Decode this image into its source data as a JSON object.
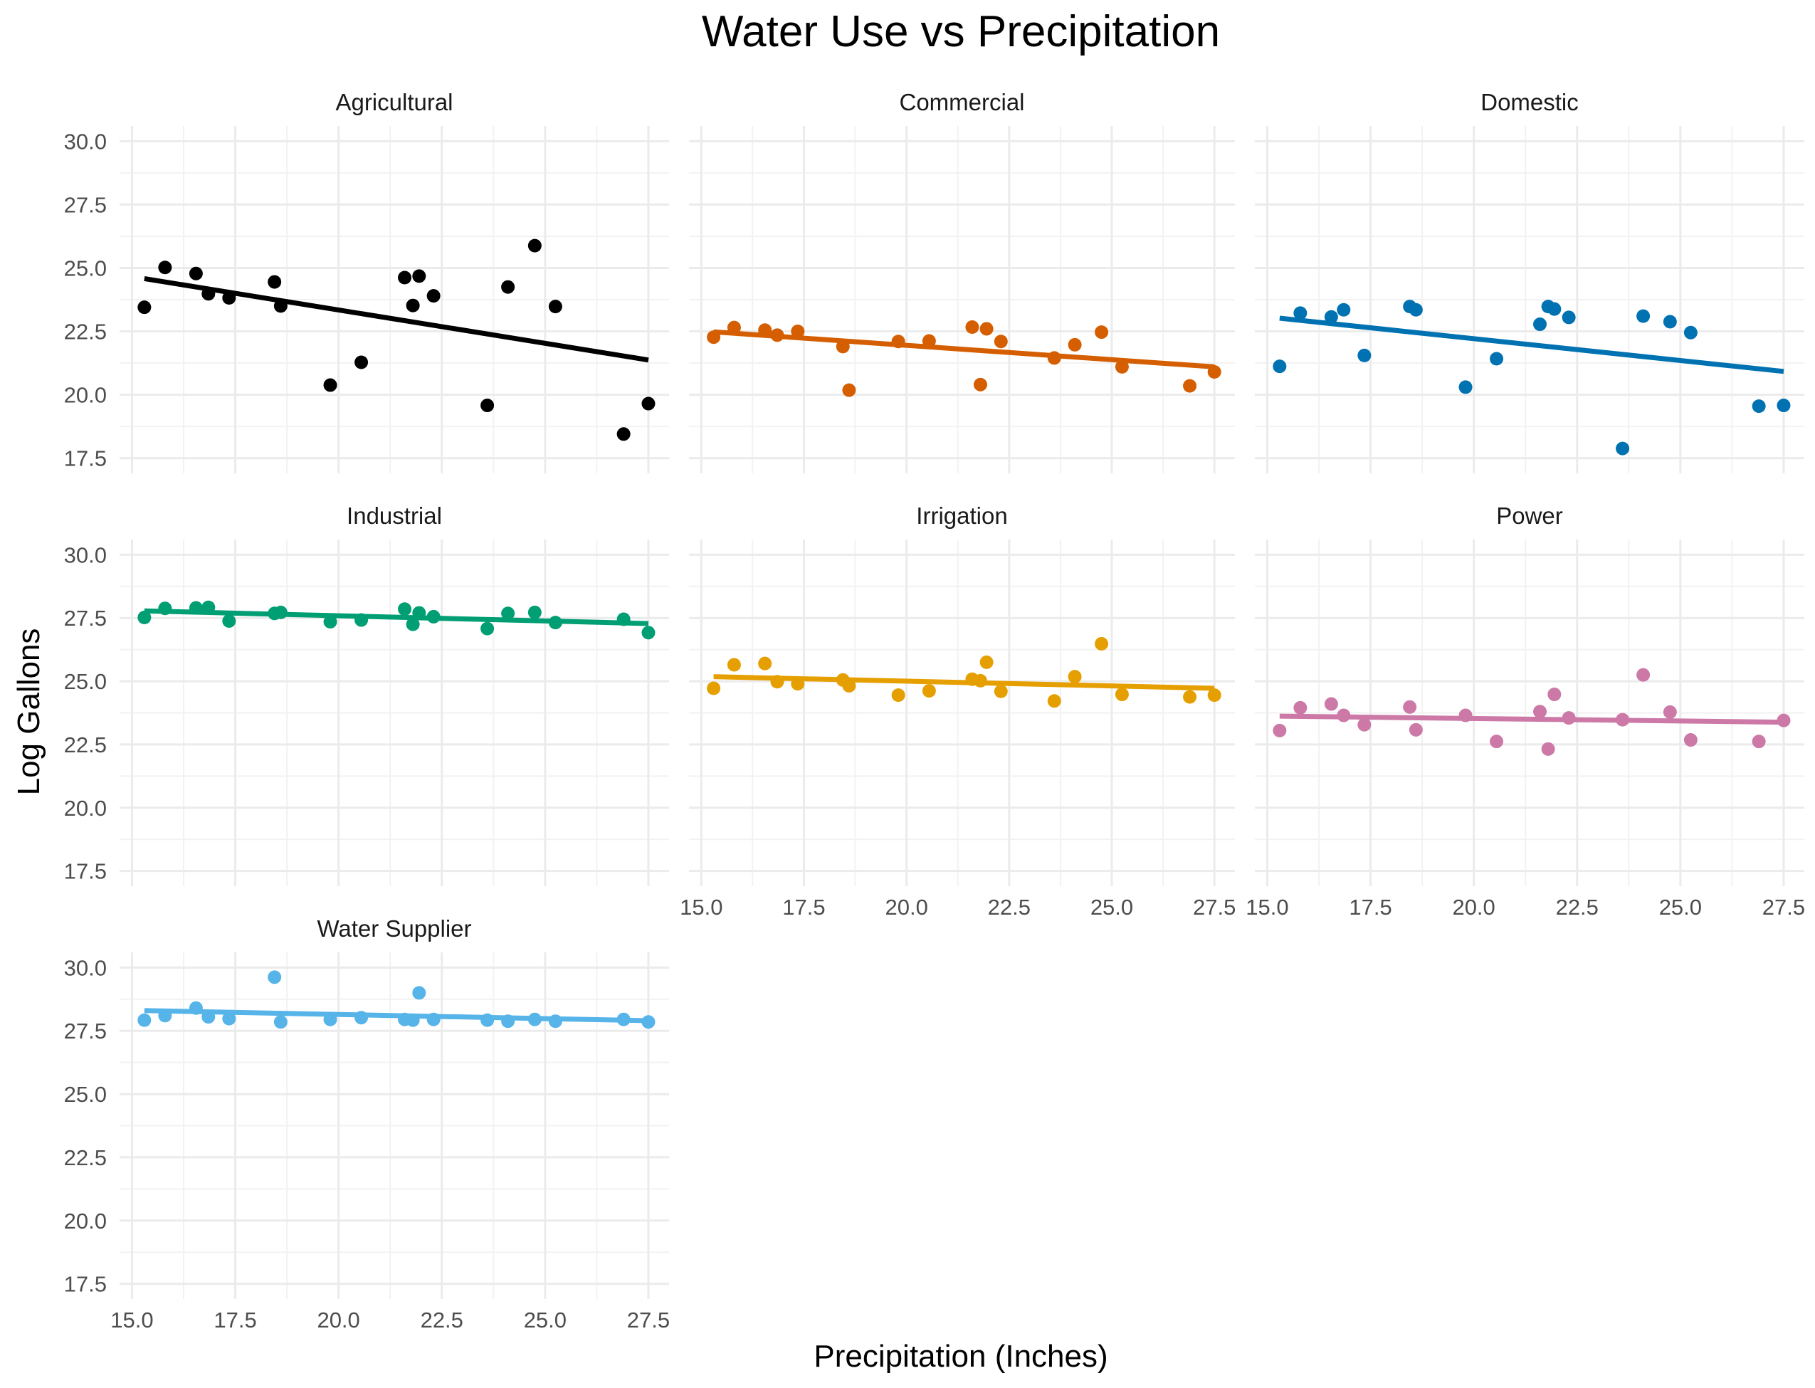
{
  "chart_data": {
    "type": "scatter",
    "title": "Water Use vs Precipitation",
    "xlabel": "Precipitation (Inches)",
    "ylabel": "Log Gallons",
    "xlim": [
      14.7,
      28.0
    ],
    "ylim": [
      16.9,
      30.6
    ],
    "x_ticks": [
      "15.0",
      "17.5",
      "20.0",
      "22.5",
      "25.0",
      "27.5"
    ],
    "y_ticks": [
      "17.5",
      "20.0",
      "22.5",
      "25.0",
      "27.5",
      "30.0"
    ],
    "grid": true,
    "legend": "none",
    "trendline": "linear",
    "panels": [
      {
        "name": "Agricultural",
        "color": "#000000",
        "fit": [
          24.58,
          21.37
        ],
        "points": [
          [
            15.3,
            23.45
          ],
          [
            15.8,
            25.02
          ],
          [
            16.55,
            24.78
          ],
          [
            16.85,
            23.98
          ],
          [
            17.35,
            23.82
          ],
          [
            18.45,
            24.45
          ],
          [
            18.6,
            23.5
          ],
          [
            19.8,
            20.38
          ],
          [
            20.55,
            21.28
          ],
          [
            21.6,
            24.62
          ],
          [
            21.8,
            23.52
          ],
          [
            21.95,
            24.68
          ],
          [
            22.3,
            23.9
          ],
          [
            23.6,
            19.58
          ],
          [
            24.1,
            24.25
          ],
          [
            24.75,
            25.88
          ],
          [
            25.25,
            23.48
          ],
          [
            26.9,
            18.45
          ],
          [
            27.5,
            19.65
          ]
        ]
      },
      {
        "name": "Commercial",
        "color": "#D55E00",
        "fit": [
          22.48,
          21.1
        ],
        "points": [
          [
            15.3,
            22.27
          ],
          [
            15.8,
            22.65
          ],
          [
            16.55,
            22.55
          ],
          [
            16.85,
            22.35
          ],
          [
            17.35,
            22.5
          ],
          [
            18.45,
            21.9
          ],
          [
            18.6,
            20.18
          ],
          [
            19.8,
            22.1
          ],
          [
            20.55,
            22.12
          ],
          [
            21.6,
            22.67
          ],
          [
            21.8,
            20.4
          ],
          [
            21.95,
            22.6
          ],
          [
            22.3,
            22.1
          ],
          [
            23.6,
            21.45
          ],
          [
            24.1,
            21.97
          ],
          [
            24.75,
            22.47
          ],
          [
            25.25,
            21.1
          ],
          [
            26.9,
            20.35
          ],
          [
            27.5,
            20.9
          ]
        ]
      },
      {
        "name": "Domestic",
        "color": "#0072B2",
        "fit": [
          23.02,
          20.92
        ],
        "points": [
          [
            15.3,
            21.12
          ],
          [
            15.8,
            23.22
          ],
          [
            16.55,
            23.07
          ],
          [
            16.85,
            23.35
          ],
          [
            17.35,
            21.55
          ],
          [
            18.45,
            23.48
          ],
          [
            18.6,
            23.35
          ],
          [
            19.8,
            20.3
          ],
          [
            20.55,
            21.42
          ],
          [
            21.6,
            22.78
          ],
          [
            21.8,
            23.48
          ],
          [
            21.95,
            23.38
          ],
          [
            22.3,
            23.05
          ],
          [
            23.6,
            17.88
          ],
          [
            24.1,
            23.1
          ],
          [
            24.75,
            22.88
          ],
          [
            25.25,
            22.45
          ],
          [
            26.9,
            19.55
          ],
          [
            27.5,
            19.58
          ]
        ]
      },
      {
        "name": "Industrial",
        "color": "#009E73",
        "fit": [
          27.78,
          27.28
        ],
        "points": [
          [
            15.3,
            27.52
          ],
          [
            15.8,
            27.88
          ],
          [
            16.55,
            27.9
          ],
          [
            16.85,
            27.92
          ],
          [
            17.35,
            27.38
          ],
          [
            18.45,
            27.68
          ],
          [
            18.6,
            27.72
          ],
          [
            19.8,
            27.35
          ],
          [
            20.55,
            27.42
          ],
          [
            21.6,
            27.85
          ],
          [
            21.8,
            27.25
          ],
          [
            21.95,
            27.7
          ],
          [
            22.3,
            27.55
          ],
          [
            23.6,
            27.08
          ],
          [
            24.1,
            27.68
          ],
          [
            24.75,
            27.72
          ],
          [
            25.25,
            27.32
          ],
          [
            26.9,
            27.45
          ],
          [
            27.5,
            26.92
          ]
        ]
      },
      {
        "name": "Irrigation",
        "color": "#E69F00",
        "fit": [
          25.18,
          24.72
        ],
        "points": [
          [
            15.3,
            24.72
          ],
          [
            15.8,
            25.65
          ],
          [
            16.55,
            25.7
          ],
          [
            16.85,
            24.98
          ],
          [
            17.35,
            24.9
          ],
          [
            18.45,
            25.05
          ],
          [
            18.6,
            24.82
          ],
          [
            19.8,
            24.45
          ],
          [
            20.55,
            24.62
          ],
          [
            21.6,
            25.08
          ],
          [
            21.8,
            25.02
          ],
          [
            21.95,
            25.75
          ],
          [
            22.3,
            24.6
          ],
          [
            23.6,
            24.22
          ],
          [
            24.1,
            25.18
          ],
          [
            24.75,
            26.48
          ],
          [
            25.25,
            24.48
          ],
          [
            26.9,
            24.38
          ],
          [
            27.5,
            24.45
          ]
        ]
      },
      {
        "name": "Power",
        "color": "#CC79A7",
        "fit": [
          23.62,
          23.38
        ],
        "points": [
          [
            15.3,
            23.05
          ],
          [
            15.8,
            23.95
          ],
          [
            16.55,
            24.1
          ],
          [
            16.85,
            23.65
          ],
          [
            17.35,
            23.28
          ],
          [
            18.45,
            23.98
          ],
          [
            18.6,
            23.08
          ],
          [
            19.8,
            23.65
          ],
          [
            20.55,
            22.62
          ],
          [
            21.6,
            23.8
          ],
          [
            21.8,
            22.32
          ],
          [
            21.95,
            24.48
          ],
          [
            22.3,
            23.55
          ],
          [
            23.6,
            23.48
          ],
          [
            24.1,
            25.25
          ],
          [
            24.75,
            23.78
          ],
          [
            25.25,
            22.68
          ],
          [
            26.9,
            22.62
          ],
          [
            27.5,
            23.45
          ]
        ]
      },
      {
        "name": "Water Supplier",
        "color": "#56B4E9",
        "fit": [
          28.3,
          27.9
        ],
        "points": [
          [
            15.3,
            27.92
          ],
          [
            15.8,
            28.1
          ],
          [
            16.55,
            28.4
          ],
          [
            16.85,
            28.05
          ],
          [
            17.35,
            27.98
          ],
          [
            18.45,
            29.62
          ],
          [
            18.6,
            27.85
          ],
          [
            19.8,
            27.95
          ],
          [
            20.55,
            28.02
          ],
          [
            21.6,
            27.95
          ],
          [
            21.8,
            27.92
          ],
          [
            21.95,
            29.0
          ],
          [
            22.3,
            27.95
          ],
          [
            23.6,
            27.92
          ],
          [
            24.1,
            27.88
          ],
          [
            24.75,
            27.95
          ],
          [
            25.25,
            27.88
          ],
          [
            26.9,
            27.95
          ],
          [
            27.5,
            27.85
          ]
        ]
      }
    ]
  }
}
